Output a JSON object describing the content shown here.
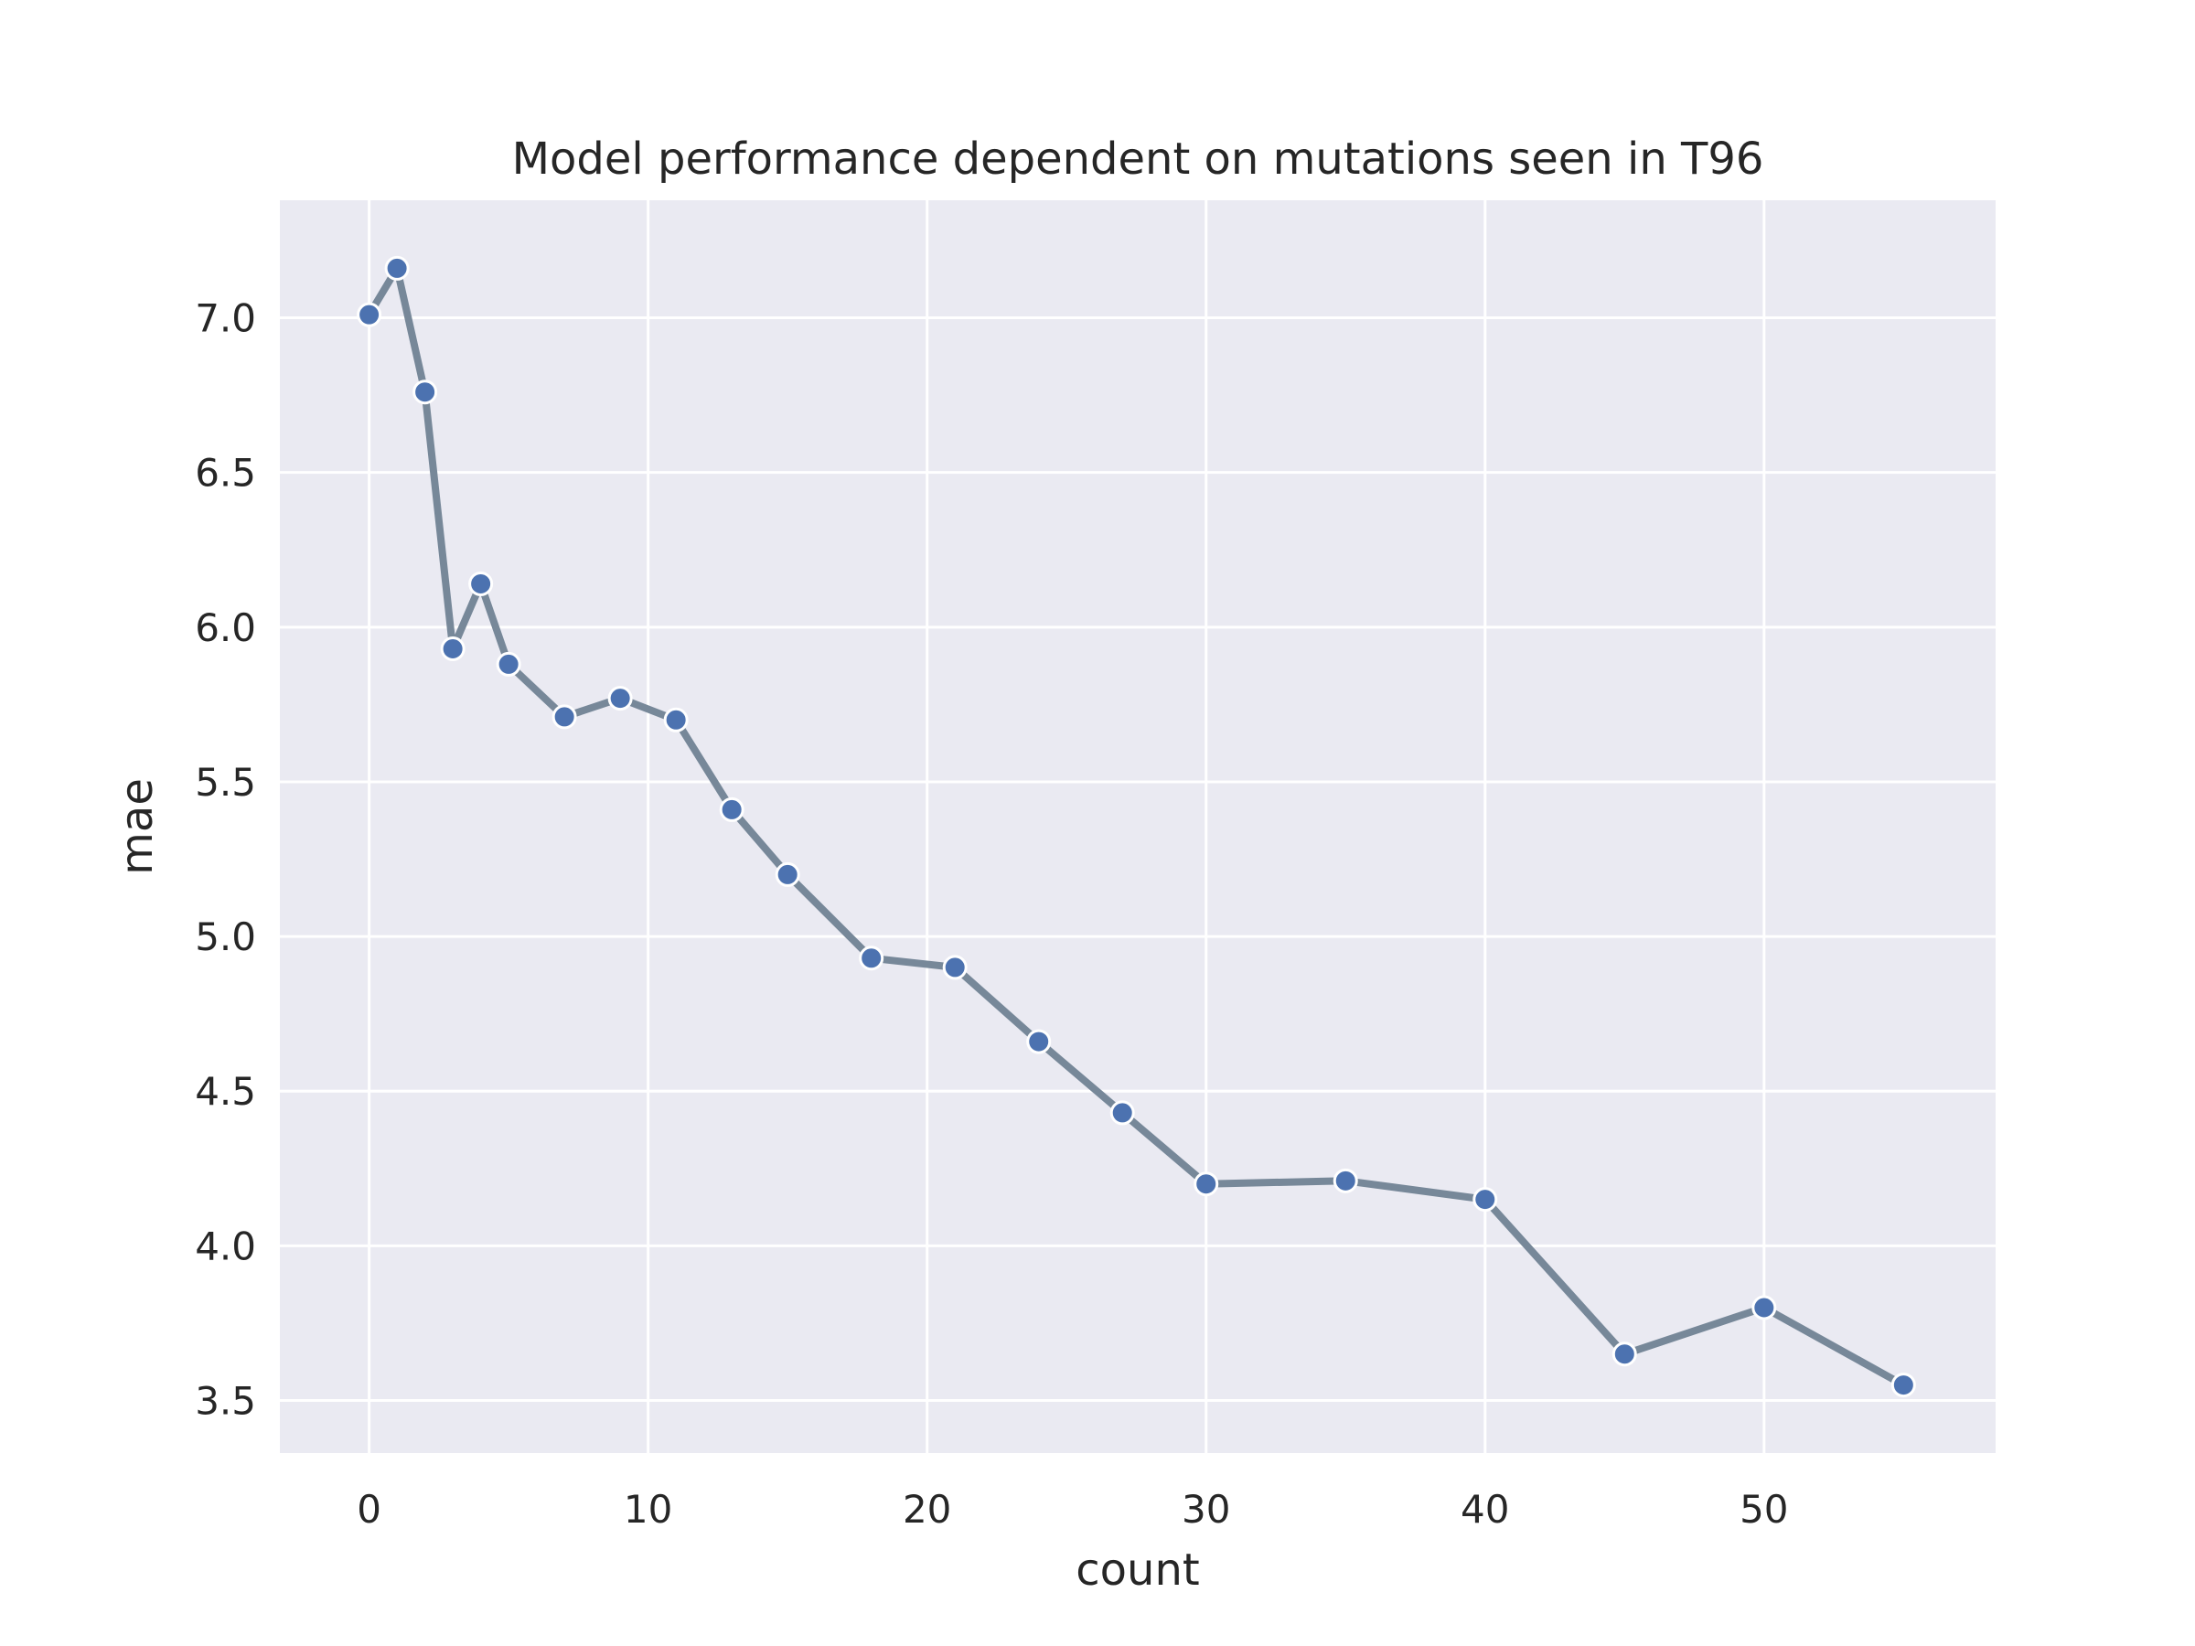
{
  "chart_data": {
    "type": "line",
    "title": "Model performance dependent on mutations seen in T96",
    "xlabel": "count",
    "ylabel": "mae",
    "xlim": [
      -3.2,
      58.3
    ],
    "ylim": [
      3.33,
      7.38
    ],
    "xticks": [
      0,
      10,
      20,
      30,
      40,
      50
    ],
    "yticks": [
      3.5,
      4.0,
      4.5,
      5.0,
      5.5,
      6.0,
      6.5,
      7.0
    ],
    "ytick_labels": [
      "3.5",
      "4.0",
      "4.5",
      "5.0",
      "5.5",
      "6.0",
      "6.5",
      "7.0"
    ],
    "grid": true,
    "legend": "none",
    "colors": {
      "plot_background": "#eaeaf2",
      "grid": "#ffffff",
      "line": "#778899",
      "marker": "#4c72b0"
    },
    "series": [
      {
        "x": [
          0,
          1,
          2,
          3,
          4,
          5,
          7,
          9,
          11,
          13,
          15,
          18,
          21,
          24,
          27,
          30,
          35,
          40,
          45,
          50,
          55
        ],
        "y": [
          7.01,
          7.16,
          6.76,
          5.93,
          6.14,
          5.88,
          5.71,
          5.77,
          5.7,
          5.41,
          5.2,
          4.93,
          4.9,
          4.66,
          4.43,
          4.2,
          4.21,
          4.15,
          3.65,
          3.8,
          3.55
        ]
      }
    ]
  }
}
